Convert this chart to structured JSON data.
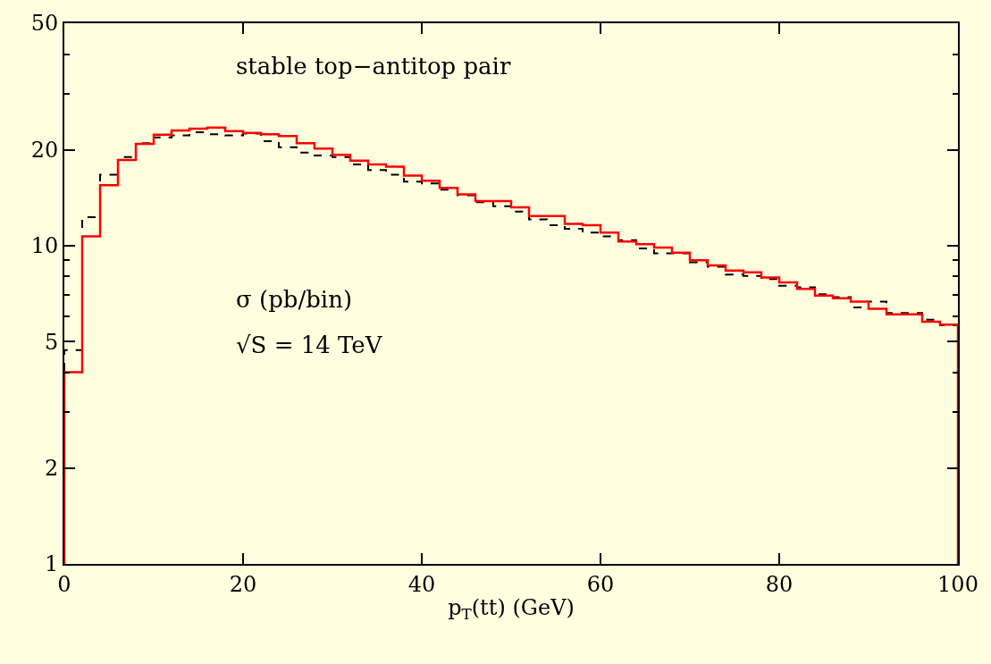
{
  "chart_data": {
    "type": "histogram",
    "title": "stable top−antitop pair",
    "xlabel": "p$_{T}$(tt) (GeV)",
    "annotations": [
      "σ (pb/bin)",
      "√S = 14 TeV"
    ],
    "bins": [
      0,
      2,
      4,
      6,
      8,
      10,
      12,
      14,
      16,
      18,
      20,
      22,
      24,
      26,
      28,
      30,
      32,
      34,
      36,
      38,
      40,
      42,
      44,
      46,
      48,
      50,
      52,
      54,
      56,
      58,
      60,
      62,
      64,
      66,
      68,
      70,
      72,
      74,
      76,
      78,
      80,
      82,
      84,
      86,
      88,
      90,
      92,
      94,
      96,
      98,
      100
    ],
    "series": [
      {
        "color": "#000000",
        "line_style": "dashed",
        "values": [
          4.7,
          12.3,
          16.7,
          19.0,
          21.0,
          21.9,
          22.2,
          22.7,
          22.4,
          22.2,
          22.5,
          21.3,
          20.4,
          19.6,
          19.2,
          19.0,
          18.0,
          17.3,
          16.7,
          15.9,
          15.7,
          15.0,
          14.4,
          13.7,
          13.3,
          12.8,
          12.1,
          11.6,
          11.3,
          11.0,
          10.7,
          10.4,
          9.8,
          9.46,
          9.46,
          8.87,
          8.59,
          8.11,
          8.03,
          7.85,
          7.48,
          7.4,
          7.04,
          6.89,
          6.4,
          6.67,
          6.14,
          6.14,
          5.85,
          5.62
        ]
      },
      {
        "color": "#ff0000",
        "line_style": "solid",
        "values": [
          4.0,
          10.7,
          15.5,
          18.6,
          20.9,
          22.3,
          23.0,
          23.3,
          23.5,
          22.9,
          22.6,
          22.4,
          22.1,
          21.0,
          20.2,
          19.3,
          18.5,
          18.0,
          17.7,
          16.6,
          16.0,
          15.2,
          14.5,
          13.8,
          13.8,
          13.2,
          12.4,
          12.4,
          11.7,
          11.6,
          11.0,
          10.3,
          10.1,
          9.87,
          9.5,
          9.0,
          8.67,
          8.35,
          8.24,
          7.95,
          7.67,
          7.32,
          6.97,
          6.83,
          6.67,
          6.34,
          6.08,
          6.08,
          5.77,
          5.65
        ]
      }
    ],
    "log": "y",
    "xlim": [
      0,
      100
    ],
    "ylim": [
      1,
      50
    ],
    "xticks": [
      0,
      20,
      40,
      60,
      80,
      100
    ],
    "yticks": [
      1,
      2,
      5,
      10,
      20,
      50,
      {
        "value": 3,
        "label": null
      },
      {
        "value": 4,
        "label": null
      },
      {
        "value": 6,
        "label": null
      },
      {
        "value": 7,
        "label": null
      },
      {
        "value": 8,
        "label": null
      },
      {
        "value": 9,
        "label": null
      },
      {
        "value": 30,
        "label": null
      },
      {
        "value": 40,
        "label": null
      }
    ],
    "grid": false
  }
}
